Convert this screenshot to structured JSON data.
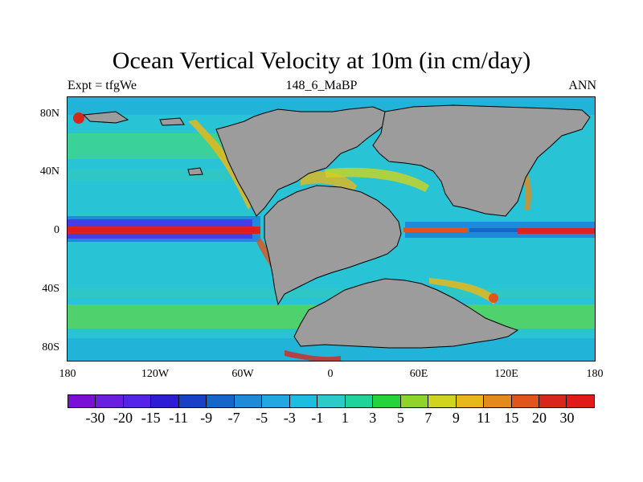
{
  "title": "Ocean Vertical Velocity at 10m (in cm/day)",
  "experiment": "Expt = tfgWe",
  "period": "148_6_MaBP",
  "season": "ANN",
  "y_axis_labels": [
    "80N",
    "40N",
    "0",
    "40S",
    "80S"
  ],
  "x_axis_labels": [
    "180",
    "120W",
    "60W",
    "0",
    "60E",
    "120E",
    "180"
  ],
  "colorbar": {
    "levels": [
      "-30",
      "-20",
      "-15",
      "-11",
      "-9",
      "-7",
      "-5",
      "-3",
      "-1",
      "1",
      "3",
      "5",
      "7",
      "9",
      "11",
      "15",
      "20",
      "30"
    ],
    "colors": [
      "#7b0fd6",
      "#6a1fe0",
      "#5424e8",
      "#2d1ed6",
      "#1a40c8",
      "#1566c8",
      "#1e8ad8",
      "#22a8e0",
      "#1dbde0",
      "#2acbc8",
      "#20d39a",
      "#26d33a",
      "#8ed42a",
      "#cfd41f",
      "#e6b81a",
      "#e38a1c",
      "#e0551c",
      "#d8261d",
      "#e11a1a"
    ]
  },
  "colors": {
    "land": "#9c9c9c",
    "ocean_base": "#29c3d6",
    "equator_upwelling": "#d8261d",
    "subtropical_band": "#5ad45a",
    "downwelling": "#1566c8"
  }
}
